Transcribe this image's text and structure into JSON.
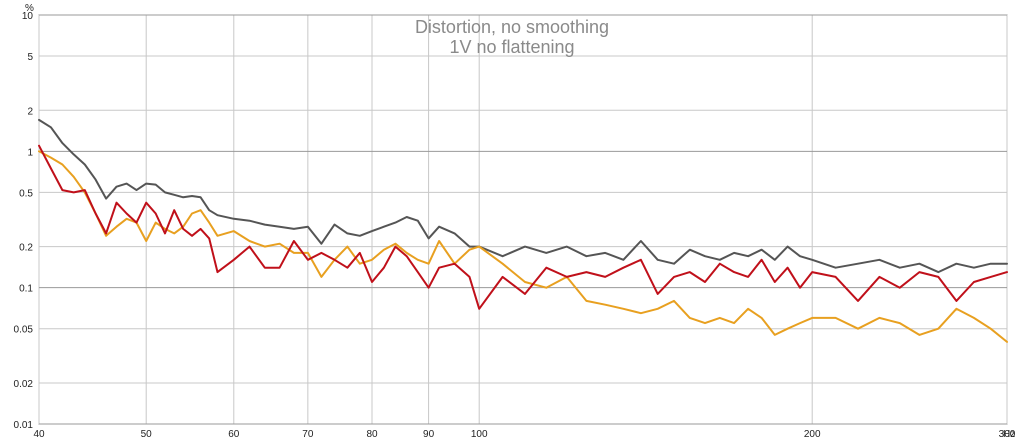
{
  "chart_data": {
    "type": "line",
    "title": "Distortion, no smoothing",
    "subtitle": "1V no flattening",
    "ylabel": "%",
    "xunit": "Hz",
    "xscale": "log",
    "yscale": "log",
    "xlim": [
      40,
      300
    ],
    "ylim": [
      0.01,
      10
    ],
    "grid": true,
    "x_ticks": [
      40,
      50,
      60,
      70,
      80,
      90,
      100,
      200,
      300
    ],
    "x_tick_labels": [
      "40",
      "50",
      "60",
      "70",
      "80",
      "90",
      "100",
      "200",
      "300"
    ],
    "y_ticks": [
      0.01,
      0.02,
      0.05,
      0.1,
      0.2,
      0.5,
      1,
      2,
      5,
      10
    ],
    "y_tick_labels": [
      "0.01",
      "0.02",
      "0.05",
      "0.1",
      "0.2",
      "0.5",
      "1",
      "2",
      "5",
      "10"
    ],
    "series": [
      {
        "color": "#555555",
        "x": [
          40,
          41,
          42,
          43,
          44,
          45,
          46,
          47,
          48,
          49,
          50,
          51,
          52,
          53,
          54,
          55,
          56,
          57,
          58,
          60,
          62,
          64,
          66,
          68,
          70,
          72,
          74,
          76,
          78,
          80,
          82,
          84,
          86,
          88,
          90,
          92,
          95,
          98,
          100,
          105,
          110,
          115,
          120,
          125,
          130,
          135,
          140,
          145,
          150,
          155,
          160,
          165,
          170,
          175,
          180,
          185,
          190,
          195,
          200,
          210,
          220,
          230,
          240,
          250,
          260,
          270,
          280,
          290,
          300
        ],
        "y": [
          1.7,
          1.5,
          1.15,
          0.95,
          0.8,
          0.62,
          0.45,
          0.55,
          0.58,
          0.52,
          0.58,
          0.57,
          0.5,
          0.48,
          0.46,
          0.47,
          0.46,
          0.37,
          0.34,
          0.32,
          0.31,
          0.29,
          0.28,
          0.27,
          0.28,
          0.21,
          0.29,
          0.25,
          0.24,
          0.26,
          0.28,
          0.3,
          0.33,
          0.31,
          0.23,
          0.28,
          0.25,
          0.2,
          0.2,
          0.17,
          0.2,
          0.18,
          0.2,
          0.17,
          0.18,
          0.16,
          0.22,
          0.16,
          0.15,
          0.19,
          0.17,
          0.16,
          0.18,
          0.17,
          0.19,
          0.16,
          0.2,
          0.17,
          0.16,
          0.14,
          0.15,
          0.16,
          0.14,
          0.15,
          0.13,
          0.15,
          0.14,
          0.15,
          0.15
        ]
      },
      {
        "color": "#e8a020",
        "x": [
          40,
          41,
          42,
          43,
          44,
          45,
          46,
          47,
          48,
          49,
          50,
          51,
          52,
          53,
          54,
          55,
          56,
          57,
          58,
          60,
          62,
          64,
          66,
          68,
          70,
          72,
          74,
          76,
          78,
          80,
          82,
          84,
          86,
          88,
          90,
          92,
          95,
          98,
          100,
          105,
          110,
          115,
          120,
          125,
          130,
          135,
          140,
          145,
          150,
          155,
          160,
          165,
          170,
          175,
          180,
          185,
          190,
          195,
          200,
          210,
          220,
          230,
          240,
          250,
          260,
          270,
          280,
          290,
          300
        ],
        "y": [
          1.0,
          0.9,
          0.8,
          0.65,
          0.5,
          0.35,
          0.24,
          0.28,
          0.32,
          0.3,
          0.22,
          0.3,
          0.27,
          0.25,
          0.28,
          0.35,
          0.37,
          0.3,
          0.24,
          0.26,
          0.22,
          0.2,
          0.21,
          0.18,
          0.18,
          0.12,
          0.16,
          0.2,
          0.15,
          0.16,
          0.19,
          0.21,
          0.18,
          0.16,
          0.15,
          0.22,
          0.15,
          0.19,
          0.2,
          0.15,
          0.11,
          0.1,
          0.12,
          0.08,
          0.075,
          0.07,
          0.065,
          0.07,
          0.08,
          0.06,
          0.055,
          0.06,
          0.055,
          0.07,
          0.06,
          0.045,
          0.05,
          0.055,
          0.06,
          0.06,
          0.05,
          0.06,
          0.055,
          0.045,
          0.05,
          0.07,
          0.06,
          0.05,
          0.04
        ]
      },
      {
        "color": "#c0101a",
        "x": [
          40,
          41,
          42,
          43,
          44,
          45,
          46,
          47,
          48,
          49,
          50,
          51,
          52,
          53,
          54,
          55,
          56,
          57,
          58,
          60,
          62,
          64,
          66,
          68,
          70,
          72,
          74,
          76,
          78,
          80,
          82,
          84,
          86,
          88,
          90,
          92,
          95,
          98,
          100,
          105,
          110,
          115,
          120,
          125,
          130,
          135,
          140,
          145,
          150,
          155,
          160,
          165,
          170,
          175,
          180,
          185,
          190,
          195,
          200,
          210,
          220,
          230,
          240,
          250,
          260,
          270,
          280,
          290,
          300
        ],
        "y": [
          1.1,
          0.75,
          0.52,
          0.5,
          0.52,
          0.35,
          0.25,
          0.42,
          0.35,
          0.3,
          0.42,
          0.35,
          0.25,
          0.37,
          0.27,
          0.24,
          0.27,
          0.23,
          0.13,
          0.16,
          0.2,
          0.14,
          0.14,
          0.22,
          0.16,
          0.18,
          0.16,
          0.14,
          0.18,
          0.11,
          0.14,
          0.2,
          0.17,
          0.13,
          0.1,
          0.14,
          0.15,
          0.12,
          0.07,
          0.12,
          0.09,
          0.14,
          0.12,
          0.13,
          0.12,
          0.14,
          0.16,
          0.09,
          0.12,
          0.13,
          0.11,
          0.15,
          0.13,
          0.12,
          0.16,
          0.11,
          0.14,
          0.1,
          0.13,
          0.12,
          0.08,
          0.12,
          0.1,
          0.13,
          0.12,
          0.08,
          0.11,
          0.12,
          0.13
        ]
      }
    ]
  }
}
